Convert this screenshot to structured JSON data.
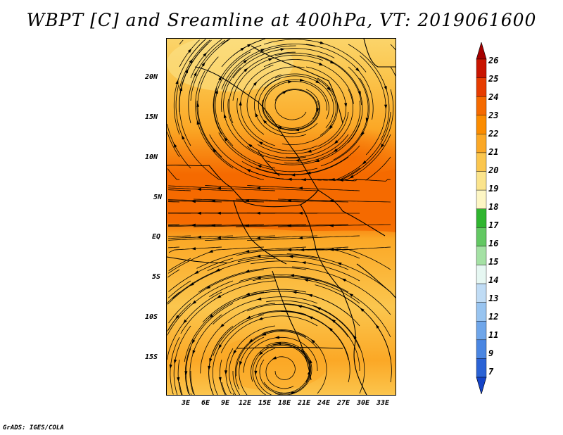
{
  "title": "WBPT [C] and Sreamline at 400hPa, VT: 2019061600",
  "credit": "GrADS: IGES/COLA",
  "map": {
    "lat_labels": [
      "20N",
      "15N",
      "10N",
      "5N",
      "EQ",
      "5S",
      "10S",
      "15S"
    ],
    "lon_labels": [
      "3E",
      "6E",
      "9E",
      "12E",
      "15E",
      "18E",
      "21E",
      "24E",
      "27E",
      "30E",
      "33E"
    ],
    "shaded_field": "wet-bulb potential temperature",
    "overlay": "streamlines"
  },
  "colorbar": {
    "labels": [
      "26",
      "25",
      "24",
      "23",
      "22",
      "21",
      "20",
      "19",
      "18",
      "17",
      "16",
      "15",
      "14",
      "13",
      "12",
      "11",
      "9",
      "7"
    ],
    "colors": [
      "#a50000",
      "#c81400",
      "#e63c00",
      "#f56a00",
      "#fb8c00",
      "#fba826",
      "#fbc64e",
      "#fbe48c",
      "#fdf6c4",
      "#2fb52f",
      "#63c863",
      "#a4e1a4",
      "#e6f7f2",
      "#c0dcf5",
      "#98c4f0",
      "#6fa6ea",
      "#4a86e2",
      "#2a62d5",
      "#1443c8"
    ]
  }
}
